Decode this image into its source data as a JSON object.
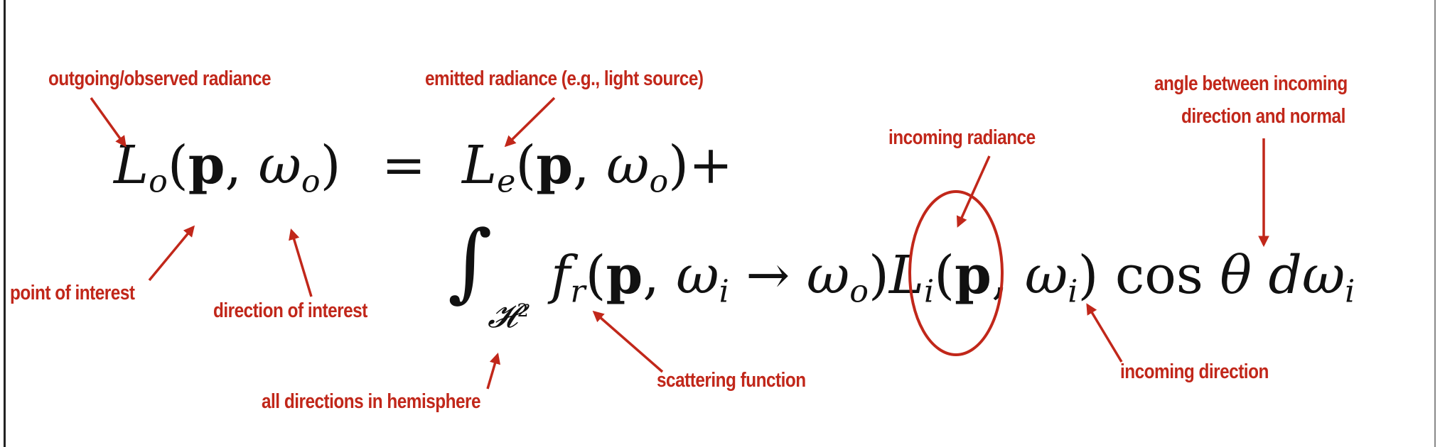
{
  "annotations": {
    "outgoing": "outgoing/observed radiance",
    "emitted": "emitted radiance (e.g., light source)",
    "angle_line1": "angle between incoming",
    "angle_line2": "direction and normal",
    "incoming_radiance": "incoming radiance",
    "point": "point of interest",
    "direction": "direction of interest",
    "hemisphere": "all directions in hemisphere",
    "scattering": "scattering function",
    "incoming_direction": "incoming direction"
  },
  "equation": {
    "lhs_symbol": "L",
    "lhs_sub": "o",
    "point": "p",
    "omega": "ω",
    "omega_o_sub": "o",
    "equals": "=",
    "emit_symbol": "L",
    "emit_sub": "e",
    "plus": "+",
    "integral": "∫",
    "domain": "𝓗",
    "domain_sup": "2",
    "brdf_symbol": "f",
    "brdf_sub": "r",
    "omega_i_sub": "i",
    "arrow": "→",
    "incoming_symbol": "L",
    "incoming_sub": "i",
    "cos": "cos",
    "theta": "θ",
    "d": "d"
  },
  "colors": {
    "annotation": "#c1271a",
    "text": "#111111",
    "background": "#ffffff"
  }
}
